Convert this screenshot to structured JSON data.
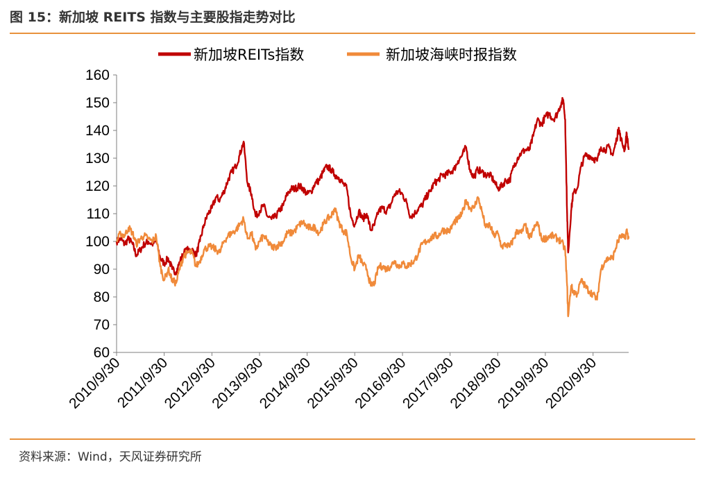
{
  "figure": {
    "title": "图 15：新加坡 REITS 指数与主要股指走势对比",
    "source": "资料来源：Wind，天风证券研究所"
  },
  "chart_data": {
    "type": "line",
    "ylim": [
      60,
      160
    ],
    "yticks": [
      60,
      70,
      80,
      90,
      100,
      110,
      120,
      130,
      140,
      150,
      160
    ],
    "xtick_labels": [
      "2010/9/30",
      "2011/9/30",
      "2012/9/30",
      "2013/9/30",
      "2014/9/30",
      "2015/9/30",
      "2016/9/30",
      "2017/9/30",
      "2018/9/30",
      "2019/9/30",
      "2020/9/30"
    ],
    "x_start": "2010-09-30",
    "x_end": "2021-06-30",
    "grid": false,
    "legend_position": "top",
    "colors": {
      "reits": "#C00000",
      "sti": "#F08A3A",
      "rule": "#E8913C"
    },
    "series": [
      {
        "name": "新加坡REITs指数",
        "color": "#C00000",
        "points": [
          [
            "2010-09-30",
            100
          ],
          [
            "2010-10-31",
            101
          ],
          [
            "2010-11-30",
            99
          ],
          [
            "2010-12-31",
            101
          ],
          [
            "2011-01-31",
            99
          ],
          [
            "2011-02-28",
            95
          ],
          [
            "2011-03-31",
            97
          ],
          [
            "2011-04-30",
            99
          ],
          [
            "2011-05-31",
            100
          ],
          [
            "2011-06-30",
            99
          ],
          [
            "2011-07-31",
            100
          ],
          [
            "2011-08-31",
            94
          ],
          [
            "2011-09-30",
            92
          ],
          [
            "2011-10-31",
            94
          ],
          [
            "2011-11-30",
            90
          ],
          [
            "2011-12-31",
            89
          ],
          [
            "2012-01-31",
            93
          ],
          [
            "2012-02-29",
            96
          ],
          [
            "2012-03-31",
            97
          ],
          [
            "2012-04-30",
            97
          ],
          [
            "2012-05-31",
            95
          ],
          [
            "2012-06-30",
            100
          ],
          [
            "2012-07-31",
            106
          ],
          [
            "2012-08-31",
            110
          ],
          [
            "2012-09-30",
            112
          ],
          [
            "2012-10-31",
            116
          ],
          [
            "2012-11-30",
            115
          ],
          [
            "2012-12-31",
            118
          ],
          [
            "2013-01-31",
            122
          ],
          [
            "2013-02-28",
            125
          ],
          [
            "2013-03-31",
            127
          ],
          [
            "2013-04-30",
            131
          ],
          [
            "2013-05-31",
            136
          ],
          [
            "2013-06-30",
            121
          ],
          [
            "2013-07-31",
            117
          ],
          [
            "2013-08-31",
            109
          ],
          [
            "2013-09-30",
            111
          ],
          [
            "2013-10-31",
            113
          ],
          [
            "2013-11-30",
            109
          ],
          [
            "2013-12-31",
            108
          ],
          [
            "2014-01-31",
            109
          ],
          [
            "2014-02-28",
            111
          ],
          [
            "2014-03-31",
            113
          ],
          [
            "2014-04-30",
            117
          ],
          [
            "2014-05-31",
            119
          ],
          [
            "2014-06-30",
            119
          ],
          [
            "2014-07-31",
            120
          ],
          [
            "2014-08-31",
            119
          ],
          [
            "2014-09-30",
            117
          ],
          [
            "2014-10-31",
            118
          ],
          [
            "2014-11-30",
            121
          ],
          [
            "2014-12-31",
            122
          ],
          [
            "2015-01-31",
            125
          ],
          [
            "2015-02-28",
            127
          ],
          [
            "2015-03-31",
            126
          ],
          [
            "2015-04-30",
            124
          ],
          [
            "2015-05-31",
            123
          ],
          [
            "2015-06-30",
            121
          ],
          [
            "2015-07-31",
            119
          ],
          [
            "2015-08-31",
            109
          ],
          [
            "2015-09-30",
            106
          ],
          [
            "2015-10-31",
            111
          ],
          [
            "2015-11-30",
            108
          ],
          [
            "2015-12-31",
            110
          ],
          [
            "2016-01-31",
            104
          ],
          [
            "2016-02-29",
            106
          ],
          [
            "2016-03-31",
            111
          ],
          [
            "2016-04-30",
            112
          ],
          [
            "2016-05-31",
            111
          ],
          [
            "2016-06-30",
            113
          ],
          [
            "2016-07-31",
            117
          ],
          [
            "2016-08-31",
            118
          ],
          [
            "2016-09-30",
            117
          ],
          [
            "2016-10-31",
            114
          ],
          [
            "2016-11-30",
            109
          ],
          [
            "2016-12-31",
            110
          ],
          [
            "2017-01-31",
            112
          ],
          [
            "2017-02-28",
            113
          ],
          [
            "2017-03-31",
            116
          ],
          [
            "2017-04-30",
            118
          ],
          [
            "2017-05-31",
            121
          ],
          [
            "2017-06-30",
            122
          ],
          [
            "2017-07-31",
            124
          ],
          [
            "2017-08-31",
            124
          ],
          [
            "2017-09-30",
            125
          ],
          [
            "2017-10-31",
            126
          ],
          [
            "2017-11-30",
            129
          ],
          [
            "2017-12-31",
            131
          ],
          [
            "2018-01-31",
            134
          ],
          [
            "2018-02-28",
            126
          ],
          [
            "2018-03-31",
            123
          ],
          [
            "2018-04-30",
            126
          ],
          [
            "2018-05-31",
            125
          ],
          [
            "2018-06-30",
            124
          ],
          [
            "2018-07-31",
            124
          ],
          [
            "2018-08-31",
            122
          ],
          [
            "2018-09-30",
            119
          ],
          [
            "2018-10-31",
            120
          ],
          [
            "2018-11-30",
            122
          ],
          [
            "2018-12-31",
            122
          ],
          [
            "2019-01-31",
            127
          ],
          [
            "2019-02-28",
            130
          ],
          [
            "2019-03-31",
            132
          ],
          [
            "2019-04-30",
            133
          ],
          [
            "2019-05-31",
            133
          ],
          [
            "2019-06-30",
            138
          ],
          [
            "2019-07-31",
            144
          ],
          [
            "2019-08-31",
            142
          ],
          [
            "2019-09-30",
            145
          ],
          [
            "2019-10-31",
            146
          ],
          [
            "2019-11-30",
            144
          ],
          [
            "2019-12-31",
            146
          ],
          [
            "2020-01-31",
            150
          ],
          [
            "2020-02-15",
            151
          ],
          [
            "2020-02-29",
            144
          ],
          [
            "2020-03-15",
            110
          ],
          [
            "2020-03-23",
            96
          ],
          [
            "2020-04-15",
            111
          ],
          [
            "2020-04-30",
            117
          ],
          [
            "2020-05-31",
            119
          ],
          [
            "2020-06-30",
            127
          ],
          [
            "2020-07-31",
            131
          ],
          [
            "2020-08-31",
            131
          ],
          [
            "2020-09-30",
            130
          ],
          [
            "2020-10-31",
            129
          ],
          [
            "2020-11-30",
            134
          ],
          [
            "2020-12-31",
            133
          ],
          [
            "2021-01-31",
            134
          ],
          [
            "2021-02-28",
            131
          ],
          [
            "2021-03-31",
            137
          ],
          [
            "2021-04-15",
            141
          ],
          [
            "2021-04-30",
            137
          ],
          [
            "2021-05-31",
            133
          ],
          [
            "2021-06-15",
            139
          ],
          [
            "2021-06-30",
            133
          ]
        ]
      },
      {
        "name": "新加坡海峡时报指数",
        "color": "#F08A3A",
        "points": [
          [
            "2010-09-30",
            100
          ],
          [
            "2010-10-31",
            103
          ],
          [
            "2010-11-30",
            102
          ],
          [
            "2010-12-31",
            105
          ],
          [
            "2011-01-31",
            103
          ],
          [
            "2011-02-28",
            99
          ],
          [
            "2011-03-31",
            101
          ],
          [
            "2011-04-30",
            102
          ],
          [
            "2011-05-31",
            101
          ],
          [
            "2011-06-30",
            100
          ],
          [
            "2011-07-31",
            102
          ],
          [
            "2011-08-31",
            91
          ],
          [
            "2011-09-30",
            86
          ],
          [
            "2011-10-31",
            90
          ],
          [
            "2011-11-30",
            86
          ],
          [
            "2011-12-31",
            85
          ],
          [
            "2012-01-31",
            91
          ],
          [
            "2012-02-29",
            95
          ],
          [
            "2012-03-31",
            96
          ],
          [
            "2012-04-30",
            96
          ],
          [
            "2012-05-31",
            91
          ],
          [
            "2012-06-30",
            93
          ],
          [
            "2012-07-31",
            97
          ],
          [
            "2012-08-31",
            98
          ],
          [
            "2012-09-30",
            98
          ],
          [
            "2012-10-31",
            97
          ],
          [
            "2012-11-30",
            96
          ],
          [
            "2012-12-31",
            100
          ],
          [
            "2013-01-31",
            102
          ],
          [
            "2013-02-28",
            103
          ],
          [
            "2013-03-31",
            104
          ],
          [
            "2013-04-30",
            106
          ],
          [
            "2013-05-31",
            108
          ],
          [
            "2013-06-30",
            101
          ],
          [
            "2013-07-31",
            103
          ],
          [
            "2013-08-31",
            97
          ],
          [
            "2013-09-30",
            100
          ],
          [
            "2013-10-31",
            102
          ],
          [
            "2013-11-30",
            100
          ],
          [
            "2013-12-31",
            98
          ],
          [
            "2014-01-31",
            98
          ],
          [
            "2014-02-28",
            99
          ],
          [
            "2014-03-31",
            100
          ],
          [
            "2014-04-30",
            103
          ],
          [
            "2014-05-31",
            103
          ],
          [
            "2014-06-30",
            104
          ],
          [
            "2014-07-31",
            106
          ],
          [
            "2014-08-31",
            107
          ],
          [
            "2014-09-30",
            105
          ],
          [
            "2014-10-31",
            105
          ],
          [
            "2014-11-30",
            105
          ],
          [
            "2014-12-31",
            103
          ],
          [
            "2015-01-31",
            106
          ],
          [
            "2015-02-28",
            108
          ],
          [
            "2015-03-31",
            109
          ],
          [
            "2015-04-30",
            112
          ],
          [
            "2015-05-31",
            107
          ],
          [
            "2015-06-30",
            104
          ],
          [
            "2015-07-31",
            103
          ],
          [
            "2015-08-31",
            94
          ],
          [
            "2015-09-30",
            90
          ],
          [
            "2015-10-31",
            95
          ],
          [
            "2015-11-30",
            92
          ],
          [
            "2015-12-31",
            90
          ],
          [
            "2016-01-31",
            84
          ],
          [
            "2016-02-29",
            85
          ],
          [
            "2016-03-31",
            91
          ],
          [
            "2016-04-30",
            91
          ],
          [
            "2016-05-31",
            90
          ],
          [
            "2016-06-30",
            91
          ],
          [
            "2016-07-31",
            93
          ],
          [
            "2016-08-31",
            91
          ],
          [
            "2016-09-30",
            92
          ],
          [
            "2016-10-31",
            91
          ],
          [
            "2016-11-30",
            92
          ],
          [
            "2016-12-31",
            93
          ],
          [
            "2017-01-31",
            96
          ],
          [
            "2017-02-28",
            99
          ],
          [
            "2017-03-31",
            100
          ],
          [
            "2017-04-30",
            101
          ],
          [
            "2017-05-31",
            102
          ],
          [
            "2017-06-30",
            102
          ],
          [
            "2017-07-31",
            104
          ],
          [
            "2017-08-31",
            104
          ],
          [
            "2017-09-30",
            104
          ],
          [
            "2017-10-31",
            107
          ],
          [
            "2017-11-30",
            108
          ],
          [
            "2017-12-31",
            110
          ],
          [
            "2018-01-31",
            115
          ],
          [
            "2018-02-28",
            112
          ],
          [
            "2018-03-31",
            112
          ],
          [
            "2018-04-30",
            116
          ],
          [
            "2018-05-31",
            111
          ],
          [
            "2018-06-30",
            105
          ],
          [
            "2018-07-31",
            106
          ],
          [
            "2018-08-31",
            102
          ],
          [
            "2018-09-30",
            103
          ],
          [
            "2018-10-31",
            98
          ],
          [
            "2018-11-30",
            99
          ],
          [
            "2018-12-31",
            98
          ],
          [
            "2019-01-31",
            101
          ],
          [
            "2019-02-28",
            104
          ],
          [
            "2019-03-31",
            103
          ],
          [
            "2019-04-30",
            106
          ],
          [
            "2019-05-31",
            101
          ],
          [
            "2019-06-30",
            104
          ],
          [
            "2019-07-31",
            107
          ],
          [
            "2019-08-31",
            101
          ],
          [
            "2019-09-30",
            101
          ],
          [
            "2019-10-31",
            102
          ],
          [
            "2019-11-30",
            102
          ],
          [
            "2019-12-31",
            101
          ],
          [
            "2020-01-31",
            100
          ],
          [
            "2020-02-29",
            97
          ],
          [
            "2020-03-15",
            84
          ],
          [
            "2020-03-23",
            73
          ],
          [
            "2020-04-15",
            84
          ],
          [
            "2020-04-30",
            82
          ],
          [
            "2020-05-31",
            81
          ],
          [
            "2020-06-30",
            86
          ],
          [
            "2020-07-31",
            84
          ],
          [
            "2020-08-31",
            82
          ],
          [
            "2020-09-30",
            81
          ],
          [
            "2020-10-31",
            79
          ],
          [
            "2020-11-30",
            90
          ],
          [
            "2020-12-31",
            93
          ],
          [
            "2021-01-31",
            94
          ],
          [
            "2021-02-28",
            94
          ],
          [
            "2021-03-31",
            99
          ],
          [
            "2021-04-30",
            102
          ],
          [
            "2021-05-31",
            101
          ],
          [
            "2021-06-15",
            104
          ],
          [
            "2021-06-30",
            101
          ]
        ]
      }
    ]
  }
}
